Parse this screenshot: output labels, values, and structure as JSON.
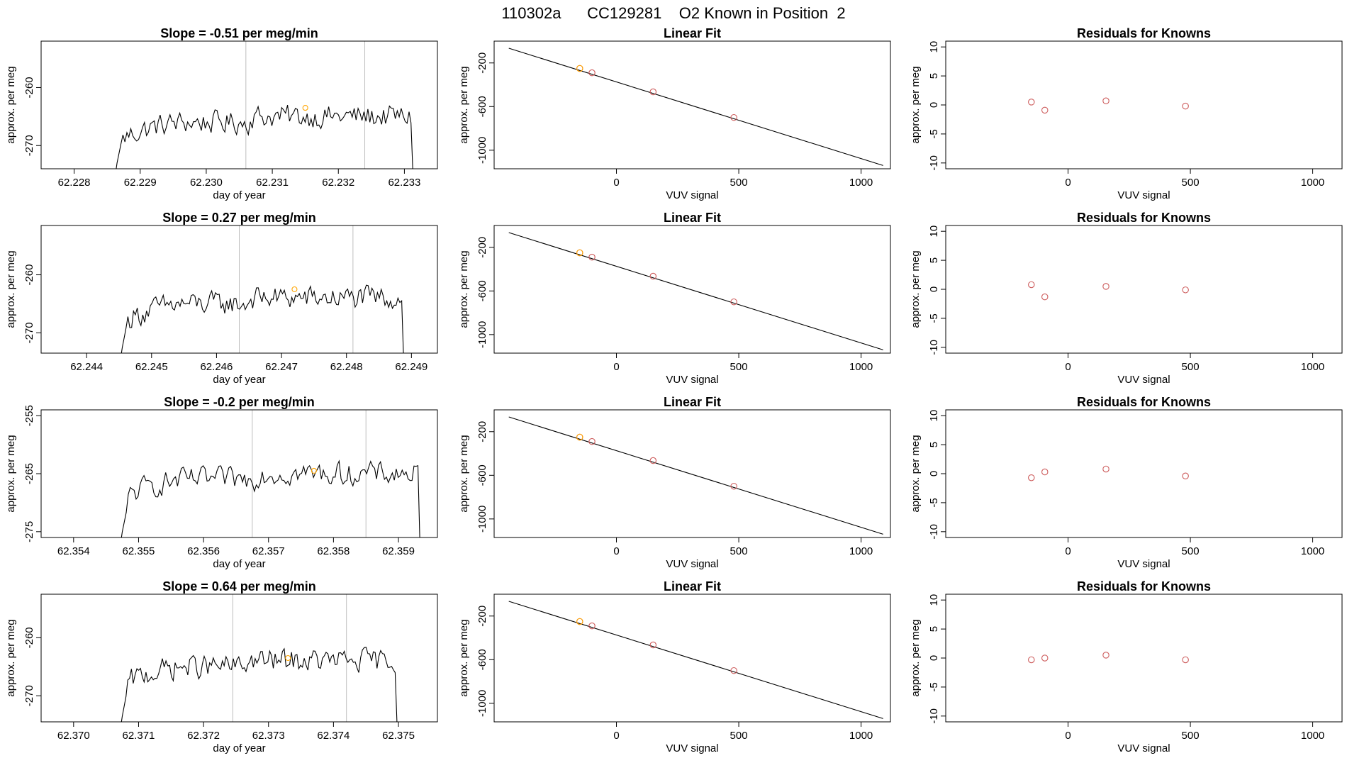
{
  "main_title": "110302a      CC129281    O2 Known in Position  2",
  "colors": {
    "line": "#000000",
    "gridline": "#bebebe",
    "known_point": "#cd5c5c",
    "highlight_point": "#ffa500"
  },
  "chart_data": [
    {
      "type": "line",
      "row": 0,
      "panel": "time-series",
      "title": "Slope =  -0.51  per meg/min",
      "xlabel": "day of year",
      "ylabel": "approx. per meg",
      "xlim": [
        62.2275,
        62.2335
      ],
      "ylim": [
        -274,
        -252
      ],
      "xticks": [
        62.228,
        62.229,
        62.23,
        62.231,
        62.232,
        62.233
      ],
      "xtick_labels": [
        "62.228",
        "62.229",
        "62.230",
        "62.231",
        "62.232",
        "62.233"
      ],
      "yticks": [
        -260,
        -270
      ],
      "ytick_labels": [
        "-260",
        "-270"
      ],
      "vlines": [
        62.2306,
        62.2324
      ],
      "signal": {
        "x_start": 62.22865,
        "x_end": 62.2331,
        "baseline": -266
      },
      "highlight": {
        "x": 62.2315,
        "y": -263.5
      }
    },
    {
      "type": "scatter",
      "row": 0,
      "panel": "linear-fit",
      "title": "Linear Fit",
      "xlabel": "VUV signal",
      "ylabel": "approx. per meg",
      "xlim": [
        -500,
        1120
      ],
      "ylim": [
        -1170,
        0
      ],
      "xticks": [
        0,
        500,
        1000
      ],
      "xtick_labels": [
        "0",
        "500",
        "1000"
      ],
      "yticks": [
        -200,
        -600,
        -1000
      ],
      "ytick_labels": [
        "-200",
        "-600",
        "-1000"
      ],
      "fit_line": {
        "x": [
          -440,
          1090
        ],
        "y": [
          -65,
          -1140
        ]
      },
      "points": [
        {
          "x": -150,
          "y": -250
        },
        {
          "x": -100,
          "y": -290
        },
        {
          "x": 150,
          "y": -465
        },
        {
          "x": 480,
          "y": -700
        }
      ],
      "highlight_index": 0
    },
    {
      "type": "scatter",
      "row": 0,
      "panel": "residuals",
      "title": "Residuals for Knowns",
      "xlabel": "VUV signal",
      "ylabel": "approx. per meg",
      "xlim": [
        -500,
        1120
      ],
      "ylim": [
        -11,
        11
      ],
      "xticks": [
        0,
        500,
        1000
      ],
      "xtick_labels": [
        "0",
        "500",
        "1000"
      ],
      "yticks": [
        -10,
        -5,
        0,
        5,
        10
      ],
      "ytick_labels": [
        "-10",
        "-5",
        "0",
        "5",
        "10"
      ],
      "points": [
        {
          "x": -150,
          "y": 0.5
        },
        {
          "x": -95,
          "y": -0.9
        },
        {
          "x": 155,
          "y": 0.7
        },
        {
          "x": 480,
          "y": -0.2
        }
      ]
    },
    {
      "type": "line",
      "row": 1,
      "panel": "time-series",
      "title": "Slope =  0.27  per meg/min",
      "xlabel": "day of year",
      "ylabel": "approx. per meg",
      "xlim": [
        62.2433,
        62.2494
      ],
      "ylim": [
        -273.5,
        -251.5
      ],
      "xticks": [
        62.244,
        62.245,
        62.246,
        62.247,
        62.248,
        62.249
      ],
      "xtick_labels": [
        "62.244",
        "62.245",
        "62.246",
        "62.247",
        "62.248",
        "62.249"
      ],
      "yticks": [
        -260,
        -270
      ],
      "ytick_labels": [
        "-260",
        "-270"
      ],
      "vlines": [
        62.24635,
        62.2481
      ],
      "signal": {
        "x_start": 62.24455,
        "x_end": 62.24885,
        "baseline": -265
      },
      "highlight": {
        "x": 62.2472,
        "y": -262.5
      }
    },
    {
      "type": "scatter",
      "row": 1,
      "panel": "linear-fit",
      "title": "Linear Fit",
      "xlabel": "VUV signal",
      "ylabel": "approx. per meg",
      "xlim": [
        -500,
        1120
      ],
      "ylim": [
        -1170,
        0
      ],
      "xticks": [
        0,
        500,
        1000
      ],
      "xtick_labels": [
        "0",
        "500",
        "1000"
      ],
      "yticks": [
        -200,
        -600,
        -1000
      ],
      "ytick_labels": [
        "-200",
        "-600",
        "-1000"
      ],
      "fit_line": {
        "x": [
          -440,
          1090
        ],
        "y": [
          -65,
          -1140
        ]
      },
      "points": [
        {
          "x": -150,
          "y": -250
        },
        {
          "x": -100,
          "y": -290
        },
        {
          "x": 150,
          "y": -465
        },
        {
          "x": 480,
          "y": -700
        }
      ],
      "highlight_index": 0
    },
    {
      "type": "scatter",
      "row": 1,
      "panel": "residuals",
      "title": "Residuals for Knowns",
      "xlabel": "VUV signal",
      "ylabel": "approx. per meg",
      "xlim": [
        -500,
        1120
      ],
      "ylim": [
        -11,
        11
      ],
      "xticks": [
        0,
        500,
        1000
      ],
      "xtick_labels": [
        "0",
        "500",
        "1000"
      ],
      "yticks": [
        -10,
        -5,
        0,
        5,
        10
      ],
      "ytick_labels": [
        "-10",
        "-5",
        "0",
        "5",
        "10"
      ],
      "points": [
        {
          "x": -150,
          "y": 0.8
        },
        {
          "x": -95,
          "y": -1.3
        },
        {
          "x": 155,
          "y": 0.5
        },
        {
          "x": 480,
          "y": -0.1
        }
      ]
    },
    {
      "type": "line",
      "row": 2,
      "panel": "time-series",
      "title": "Slope =  -0.2  per meg/min",
      "xlabel": "day of year",
      "ylabel": "approx. per meg",
      "xlim": [
        62.3535,
        62.3596
      ],
      "ylim": [
        -276,
        -254
      ],
      "xticks": [
        62.354,
        62.355,
        62.356,
        62.357,
        62.358,
        62.359
      ],
      "xtick_labels": [
        "62.354",
        "62.355",
        "62.356",
        "62.357",
        "62.358",
        "62.359"
      ],
      "yticks": [
        -255,
        -265,
        -275
      ],
      "ytick_labels": [
        "-255",
        "-265",
        "-275"
      ],
      "vlines": [
        62.35675,
        62.3585
      ],
      "signal": {
        "x_start": 62.35475,
        "x_end": 62.3593,
        "baseline": -266
      },
      "highlight": {
        "x": 62.3577,
        "y": -264.5
      }
    },
    {
      "type": "scatter",
      "row": 2,
      "panel": "linear-fit",
      "title": "Linear Fit",
      "xlabel": "VUV signal",
      "ylabel": "approx. per meg",
      "xlim": [
        -500,
        1120
      ],
      "ylim": [
        -1170,
        0
      ],
      "xticks": [
        0,
        500,
        1000
      ],
      "xtick_labels": [
        "0",
        "500",
        "1000"
      ],
      "yticks": [
        -200,
        -600,
        -1000
      ],
      "ytick_labels": [
        "-200",
        "-600",
        "-1000"
      ],
      "fit_line": {
        "x": [
          -440,
          1090
        ],
        "y": [
          -65,
          -1140
        ]
      },
      "points": [
        {
          "x": -150,
          "y": -250
        },
        {
          "x": -100,
          "y": -290
        },
        {
          "x": 150,
          "y": -465
        },
        {
          "x": 480,
          "y": -700
        }
      ],
      "highlight_index": 0
    },
    {
      "type": "scatter",
      "row": 2,
      "panel": "residuals",
      "title": "Residuals for Knowns",
      "xlabel": "VUV signal",
      "ylabel": "approx. per meg",
      "xlim": [
        -500,
        1120
      ],
      "ylim": [
        -11,
        11
      ],
      "xticks": [
        0,
        500,
        1000
      ],
      "xtick_labels": [
        "0",
        "500",
        "1000"
      ],
      "yticks": [
        -10,
        -5,
        0,
        5,
        10
      ],
      "ytick_labels": [
        "-10",
        "-5",
        "0",
        "5",
        "10"
      ],
      "points": [
        {
          "x": -150,
          "y": -0.7
        },
        {
          "x": -95,
          "y": 0.3
        },
        {
          "x": 155,
          "y": 0.8
        },
        {
          "x": 480,
          "y": -0.4
        }
      ]
    },
    {
      "type": "line",
      "row": 3,
      "panel": "time-series",
      "title": "Slope =  0.64  per meg/min",
      "xlabel": "day of year",
      "ylabel": "approx. per meg",
      "xlim": [
        62.3695,
        62.3756
      ],
      "ylim": [
        -274.5,
        -252.5
      ],
      "xticks": [
        62.37,
        62.371,
        62.372,
        62.373,
        62.374,
        62.375
      ],
      "xtick_labels": [
        "62.370",
        "62.371",
        "62.372",
        "62.373",
        "62.374",
        "62.375"
      ],
      "yticks": [
        -260,
        -270
      ],
      "ytick_labels": [
        "-260",
        "-270"
      ],
      "vlines": [
        62.37245,
        62.3742
      ],
      "signal": {
        "x_start": 62.37075,
        "x_end": 62.37495,
        "baseline": -265
      },
      "highlight": {
        "x": 62.3733,
        "y": -263.5
      }
    },
    {
      "type": "scatter",
      "row": 3,
      "panel": "linear-fit",
      "title": "Linear Fit",
      "xlabel": "VUV signal",
      "ylabel": "approx. per meg",
      "xlim": [
        -500,
        1120
      ],
      "ylim": [
        -1170,
        0
      ],
      "xticks": [
        0,
        500,
        1000
      ],
      "xtick_labels": [
        "0",
        "500",
        "1000"
      ],
      "yticks": [
        -200,
        -600,
        -1000
      ],
      "ytick_labels": [
        "-200",
        "-600",
        "-1000"
      ],
      "fit_line": {
        "x": [
          -440,
          1090
        ],
        "y": [
          -65,
          -1140
        ]
      },
      "points": [
        {
          "x": -150,
          "y": -250
        },
        {
          "x": -100,
          "y": -290
        },
        {
          "x": 150,
          "y": -465
        },
        {
          "x": 480,
          "y": -700
        }
      ],
      "highlight_index": 0
    },
    {
      "type": "scatter",
      "row": 3,
      "panel": "residuals",
      "title": "Residuals for Knowns",
      "xlabel": "VUV signal",
      "ylabel": "approx. per meg",
      "xlim": [
        -500,
        1120
      ],
      "ylim": [
        -11,
        11
      ],
      "xticks": [
        0,
        500,
        1000
      ],
      "xtick_labels": [
        "0",
        "500",
        "1000"
      ],
      "yticks": [
        -10,
        -5,
        0,
        5,
        10
      ],
      "ytick_labels": [
        "-10",
        "-5",
        "0",
        "5",
        "10"
      ],
      "points": [
        {
          "x": -150,
          "y": -0.3
        },
        {
          "x": -95,
          "y": 0.0
        },
        {
          "x": 155,
          "y": 0.5
        },
        {
          "x": 480,
          "y": -0.3
        }
      ]
    }
  ]
}
